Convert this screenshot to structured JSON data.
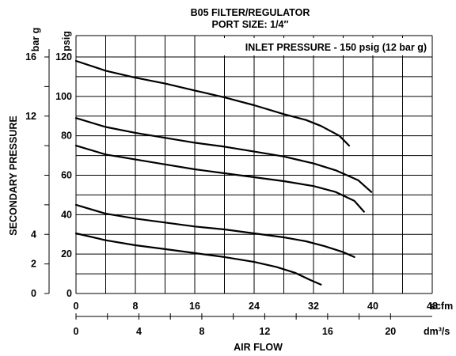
{
  "chart_data": {
    "type": "line",
    "title": "B05 FILTER/REGULATOR",
    "subtitle": "PORT SIZE: 1/4″",
    "annotation": "INLET PRESSURE - 150 psig (12 bar g)",
    "xlabel": "AIR FLOW",
    "ylabel": "SECONDARY PRESSURE",
    "x_units_primary": "scfm",
    "x_units_secondary": "dm³/s",
    "y_units_primary": "psig",
    "y_units_secondary": "bar g",
    "xlim": [
      0,
      48
    ],
    "ylim": [
      0,
      120
    ],
    "grid": true,
    "x_ticks_primary": [
      "0",
      "8",
      "16",
      "24",
      "32",
      "40",
      "48"
    ],
    "x_tick_values_primary": [
      0,
      8,
      16,
      24,
      32,
      40,
      48
    ],
    "y_ticks_primary": [
      "0",
      "20",
      "40",
      "60",
      "80",
      "100",
      "120"
    ],
    "y_tick_values_primary": [
      0,
      20,
      40,
      60,
      80,
      100,
      120
    ],
    "x_ticks_secondary": [
      "0",
      "4",
      "8",
      "12",
      "16",
      "20"
    ],
    "x_tick_values_secondary": [
      0,
      4,
      8,
      12,
      16,
      20
    ],
    "y_ticks_secondary": [
      "0",
      "2",
      "4",
      "12",
      "16"
    ],
    "y_tick_values_secondary": [
      0,
      2,
      4,
      12,
      16
    ],
    "series": [
      {
        "x": [
          0,
          4,
          8,
          12,
          16,
          20,
          24,
          28,
          31,
          33,
          35.5,
          36.8
        ],
        "y": [
          118,
          113,
          109.5,
          106.5,
          103,
          99.5,
          95.5,
          91,
          88,
          85,
          80,
          75
        ]
      },
      {
        "x": [
          0,
          4,
          8,
          12,
          16,
          20,
          24,
          28,
          32,
          35,
          38,
          39.8
        ],
        "y": [
          89,
          84.5,
          81.5,
          79,
          76.5,
          74.5,
          72,
          69.5,
          66,
          62.5,
          57.5,
          51.5
        ]
      },
      {
        "x": [
          0,
          4,
          8,
          12,
          16,
          20,
          24,
          28,
          32,
          35,
          37.5,
          38.8
        ],
        "y": [
          75,
          70.5,
          68,
          65.5,
          63,
          61,
          59,
          57,
          54.5,
          51.5,
          47,
          41.5
        ]
      },
      {
        "x": [
          0,
          4,
          8,
          12,
          16,
          20,
          24,
          28,
          31,
          33.5,
          36,
          37.5
        ],
        "y": [
          45,
          40.5,
          38,
          36,
          34,
          32.5,
          30.5,
          28.5,
          26.5,
          24,
          21,
          18.5
        ]
      },
      {
        "x": [
          0,
          4,
          8,
          12,
          16,
          20,
          24,
          27,
          29.5,
          31.5,
          33
        ],
        "y": [
          30.5,
          27,
          24.5,
          22.5,
          20.5,
          18.5,
          16,
          13.5,
          10.5,
          7,
          4.5
        ]
      }
    ]
  }
}
